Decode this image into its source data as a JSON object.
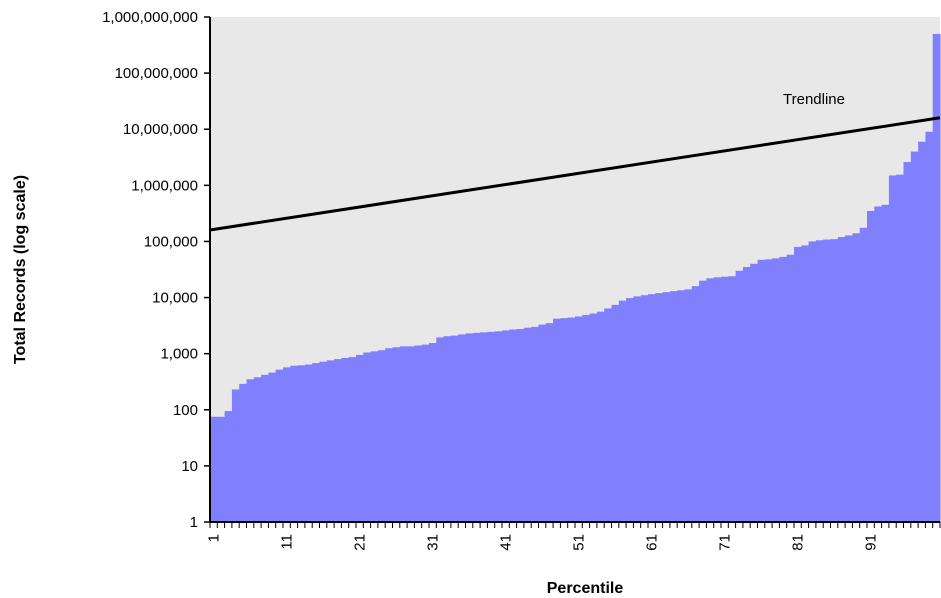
{
  "chart_data": {
    "type": "bar",
    "title": "",
    "xlabel": "Percentile",
    "ylabel": "Total Records (log scale)",
    "y_scale": "log",
    "ylim": [
      1,
      1000000000
    ],
    "xlim": [
      1,
      100
    ],
    "grid": false,
    "background_color": "#e8e8e8",
    "bar_color": "#8080ff",
    "trendline_color": "#000000",
    "y_ticks": [
      {
        "value": 1,
        "label": "1"
      },
      {
        "value": 10,
        "label": "10"
      },
      {
        "value": 100,
        "label": "100"
      },
      {
        "value": 1000,
        "label": "1,000"
      },
      {
        "value": 10000,
        "label": "10,000"
      },
      {
        "value": 100000,
        "label": "100,000"
      },
      {
        "value": 1000000,
        "label": "1,000,000"
      },
      {
        "value": 10000000,
        "label": "10,000,000"
      },
      {
        "value": 100000000,
        "label": "100,000,000"
      },
      {
        "value": 1000000000,
        "label": "1,000,000,000"
      }
    ],
    "x_tick_labels": [
      "1",
      "11",
      "21",
      "31",
      "41",
      "51",
      "61",
      "71",
      "81",
      "91"
    ],
    "percentiles": [
      1,
      2,
      3,
      4,
      5,
      6,
      7,
      8,
      9,
      10,
      11,
      12,
      13,
      14,
      15,
      16,
      17,
      18,
      19,
      20,
      21,
      22,
      23,
      24,
      25,
      26,
      27,
      28,
      29,
      30,
      31,
      32,
      33,
      34,
      35,
      36,
      37,
      38,
      39,
      40,
      41,
      42,
      43,
      44,
      45,
      46,
      47,
      48,
      49,
      50,
      51,
      52,
      53,
      54,
      55,
      56,
      57,
      58,
      59,
      60,
      61,
      62,
      63,
      64,
      65,
      66,
      67,
      68,
      69,
      70,
      71,
      72,
      73,
      74,
      75,
      76,
      77,
      78,
      79,
      80,
      81,
      82,
      83,
      84,
      85,
      86,
      87,
      88,
      89,
      90,
      91,
      92,
      93,
      94,
      95,
      96,
      97,
      98,
      99,
      100
    ],
    "values": [
      75,
      75,
      95,
      230,
      290,
      350,
      380,
      420,
      460,
      520,
      570,
      610,
      620,
      640,
      680,
      720,
      760,
      800,
      840,
      870,
      950,
      1050,
      1100,
      1150,
      1250,
      1300,
      1350,
      1350,
      1400,
      1450,
      1550,
      1950,
      2050,
      2100,
      2200,
      2300,
      2350,
      2400,
      2450,
      2500,
      2600,
      2700,
      2750,
      2900,
      3000,
      3300,
      3500,
      4200,
      4300,
      4400,
      4600,
      4900,
      5200,
      5600,
      6400,
      7400,
      8800,
      9800,
      10500,
      11000,
      11500,
      12000,
      12500,
      13000,
      13500,
      14000,
      16000,
      20000,
      22000,
      23000,
      23500,
      24000,
      30000,
      35000,
      40000,
      47000,
      48000,
      50000,
      53000,
      58000,
      80000,
      85000,
      100000,
      105000,
      108000,
      110000,
      120000,
      128000,
      140000,
      175000,
      350000,
      420000,
      450000,
      1500000,
      1550000,
      2600000,
      4000000,
      6000000,
      9000000,
      500000000
    ],
    "trendline": {
      "name": "Trendline",
      "x": [
        1,
        100
      ],
      "y": [
        160000,
        16000000
      ]
    }
  }
}
